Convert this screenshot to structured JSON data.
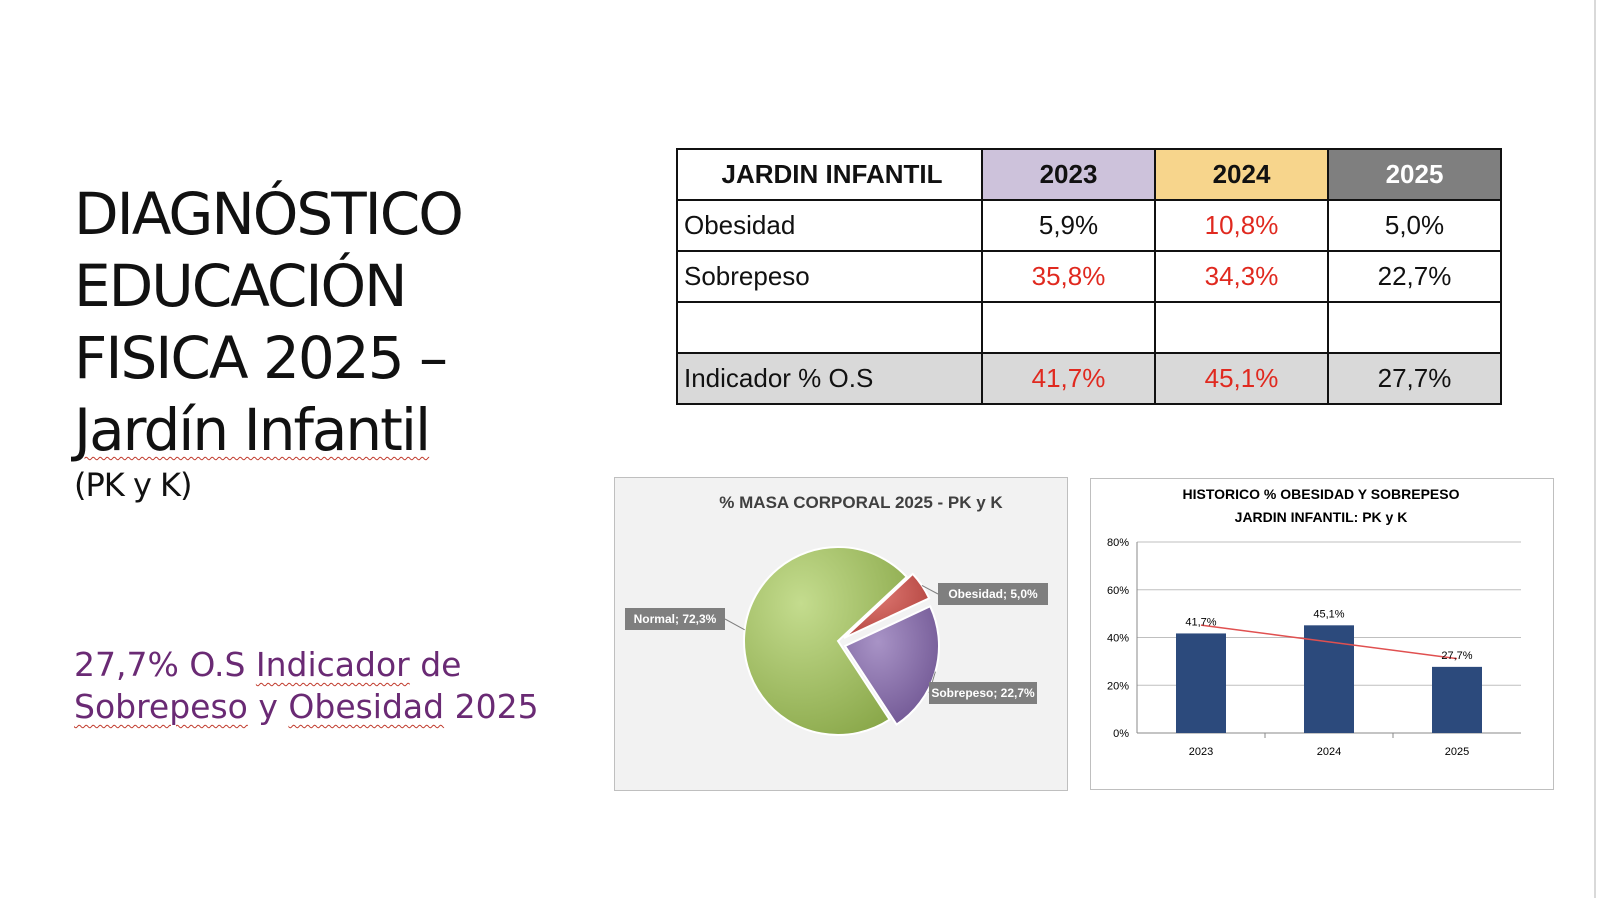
{
  "slide": {
    "title_lines": [
      "DIAGNÓSTICO",
      "EDUCACIÓN",
      "FISICA 2025 –",
      "Jardín Infantil"
    ],
    "subtitle": "(PK y K)",
    "indicator_line1_a": "27,7% O.S  ",
    "indicator_line1_b": "Indicador",
    "indicator_line1_c": " de",
    "indicator_line2_a": "Sobrepeso",
    "indicator_line2_b": " y ",
    "indicator_line2_c": "Obesidad",
    "indicator_line2_d": "  2025"
  },
  "table": {
    "header": [
      "JARDIN INFANTIL",
      "2023",
      "2024",
      "2025"
    ],
    "rows": [
      {
        "label": "Obesidad",
        "values": [
          "5,9%",
          "10,8%",
          "5,0%"
        ]
      },
      {
        "label": "Sobrepeso",
        "values": [
          "35,8%",
          "34,3%",
          "22,7%"
        ]
      },
      {
        "label": "",
        "values": [
          "",
          "",
          ""
        ]
      },
      {
        "label": "Indicador % O.S",
        "values": [
          "41,7%",
          "45,1%",
          "27,7%"
        ]
      }
    ],
    "colors": {
      "2023": "#cdc2db",
      "2024": "#f7d58c",
      "2025": "#7f7f7f",
      "highlight": "#e0291f"
    }
  },
  "chart_data": [
    {
      "type": "pie",
      "title": "% MASA CORPORAL 2025  - PK y K",
      "slices": [
        {
          "name": "Normal",
          "value": 72.3,
          "label": "Normal; 72,3%",
          "color": "#9bbb59"
        },
        {
          "name": "Obesidad",
          "value": 5.0,
          "label": "Obesidad; 5,0%",
          "color": "#c0504d"
        },
        {
          "name": "Sobrepeso",
          "value": 22.7,
          "label": "Sobrepeso; 22,7%",
          "color": "#8064a2"
        }
      ]
    },
    {
      "type": "bar",
      "title_line1": "HISTORICO % OBESIDAD Y SOBREPESO",
      "title_line2": "JARDIN INFANTIL: PK y K",
      "categories": [
        "2023",
        "2024",
        "2025"
      ],
      "values": [
        41.7,
        45.1,
        27.7
      ],
      "value_labels": [
        "41,7%",
        "45,1%",
        "27,7%"
      ],
      "ylim": [
        0,
        80
      ],
      "yticks": [
        "0%",
        "20%",
        "40%",
        "60%",
        "80%"
      ],
      "bar_color": "#2c4a7c",
      "trendline_color": "#e05050",
      "grid": true
    }
  ]
}
